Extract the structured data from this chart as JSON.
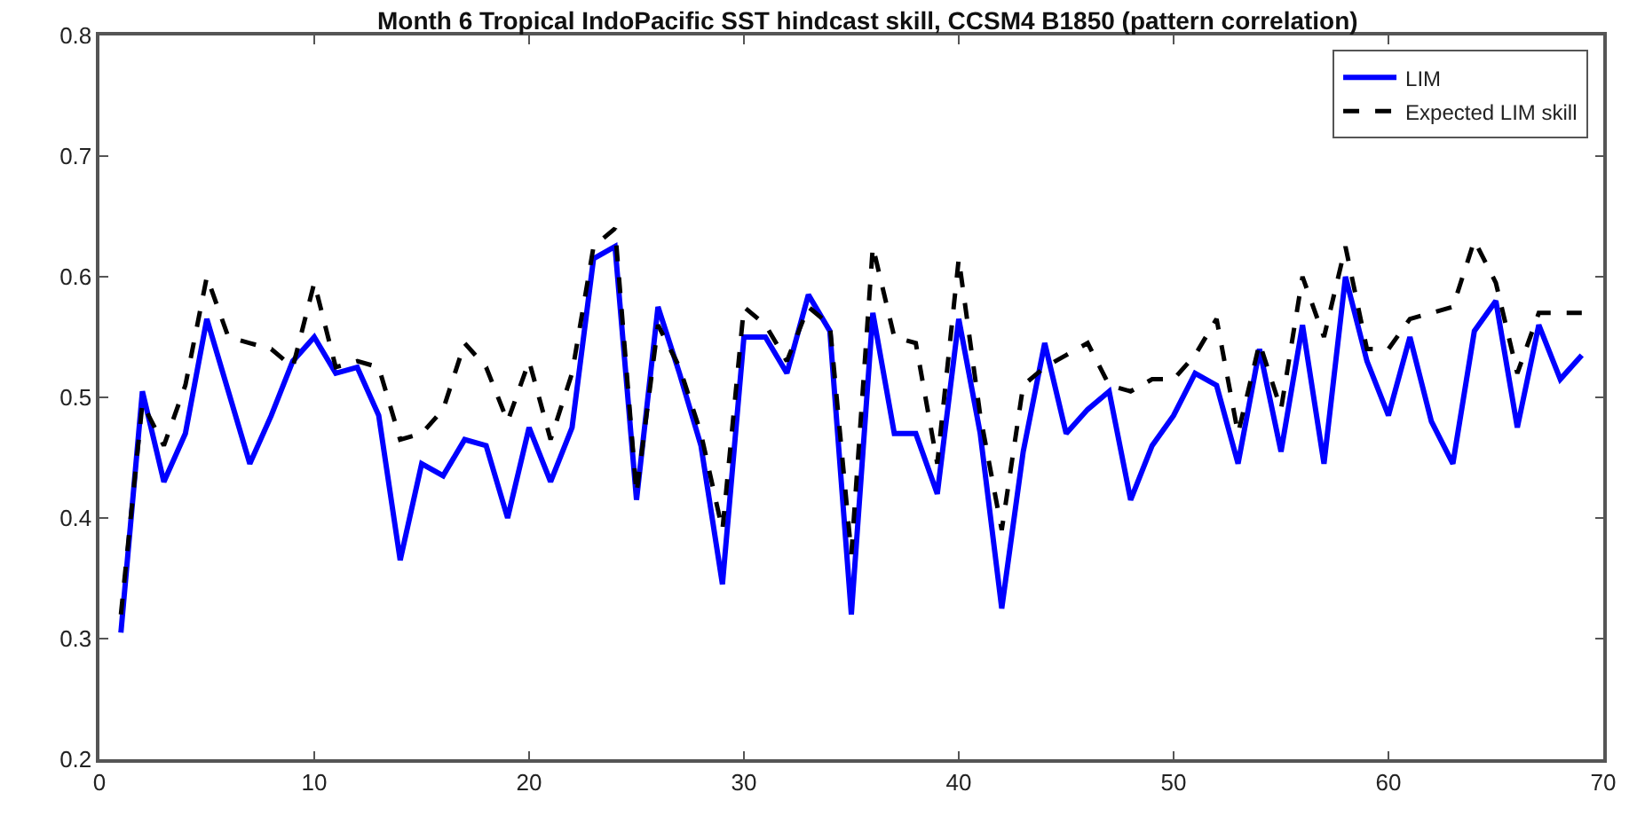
{
  "chart_data": {
    "type": "line",
    "title": "Month 6 Tropical IndoPacific SST hindcast skill, CCSM4 B1850 (pattern correlation)",
    "x": [
      1,
      2,
      3,
      4,
      5,
      6,
      7,
      8,
      9,
      10,
      11,
      12,
      13,
      14,
      15,
      16,
      17,
      18,
      19,
      20,
      21,
      22,
      23,
      24,
      25,
      26,
      27,
      28,
      29,
      30,
      31,
      32,
      33,
      34,
      35,
      36,
      37,
      38,
      39,
      40,
      41,
      42,
      43,
      44,
      45,
      46,
      47,
      48,
      49,
      50,
      51,
      52,
      53,
      54,
      55,
      56,
      57,
      58,
      59,
      60,
      61,
      62,
      63,
      64,
      65,
      66,
      67,
      68,
      69
    ],
    "series": [
      {
        "name": "LIM",
        "color": "#0000ff",
        "line_style": "solid",
        "values": [
          0.305,
          0.505,
          0.43,
          0.47,
          0.565,
          0.505,
          0.445,
          0.485,
          0.53,
          0.55,
          0.52,
          0.525,
          0.485,
          0.365,
          0.445,
          0.435,
          0.465,
          0.46,
          0.4,
          0.475,
          0.43,
          0.475,
          0.615,
          0.625,
          0.415,
          0.575,
          0.52,
          0.46,
          0.345,
          0.55,
          0.55,
          0.52,
          0.585,
          0.555,
          0.32,
          0.57,
          0.47,
          0.47,
          0.42,
          0.565,
          0.47,
          0.325,
          0.455,
          0.545,
          0.47,
          0.49,
          0.505,
          0.415,
          0.46,
          0.485,
          0.52,
          0.51,
          0.445,
          0.54,
          0.455,
          0.56,
          0.445,
          0.6,
          0.53,
          0.485,
          0.55,
          0.48,
          0.445,
          0.555,
          0.58,
          0.475,
          0.56,
          0.515,
          0.535
        ]
      },
      {
        "name": "Expected LIM skill",
        "color": "#000000",
        "line_style": "dashed",
        "values": [
          0.32,
          0.495,
          0.46,
          0.51,
          0.6,
          0.55,
          0.545,
          0.54,
          0.525,
          0.595,
          0.525,
          0.53,
          0.525,
          0.465,
          0.47,
          0.49,
          0.545,
          0.525,
          0.48,
          0.53,
          0.465,
          0.52,
          0.625,
          0.64,
          0.42,
          0.56,
          0.525,
          0.47,
          0.39,
          0.575,
          0.56,
          0.53,
          0.575,
          0.56,
          0.37,
          0.625,
          0.55,
          0.545,
          0.445,
          0.615,
          0.485,
          0.39,
          0.51,
          0.525,
          0.535,
          0.545,
          0.51,
          0.505,
          0.515,
          0.515,
          0.535,
          0.565,
          0.47,
          0.545,
          0.49,
          0.6,
          0.55,
          0.625,
          0.54,
          0.54,
          0.565,
          0.57,
          0.575,
          0.63,
          0.595,
          0.52,
          0.57,
          0.57,
          0.57
        ]
      }
    ],
    "xlim": [
      0,
      70
    ],
    "xticks": [
      0,
      10,
      20,
      30,
      40,
      50,
      60,
      70
    ],
    "ylim": [
      0.2,
      0.8
    ],
    "yticks": [
      0.2,
      0.3,
      0.4,
      0.5,
      0.6,
      0.7,
      0.8
    ],
    "grid": false,
    "legend": "top right",
    "marker": "none"
  }
}
